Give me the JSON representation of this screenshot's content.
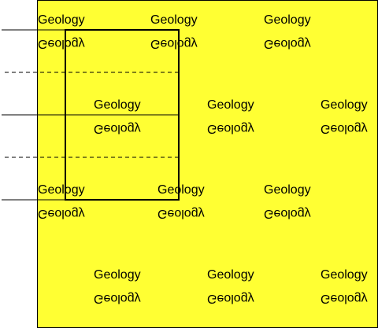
{
  "label_text": "Geology",
  "colors": {
    "background": "#ffffff",
    "sheet_fill": "#ffff33",
    "stroke": "#000000"
  },
  "label_rows": [
    {
      "row": 1,
      "count": 3
    },
    {
      "row": 2,
      "count": 3
    },
    {
      "row": 3,
      "count": 3
    },
    {
      "row": 4,
      "count": 3
    }
  ],
  "line_styles": {
    "row_lines": [
      "solid",
      "dashed",
      "solid",
      "dashed",
      "solid"
    ]
  }
}
